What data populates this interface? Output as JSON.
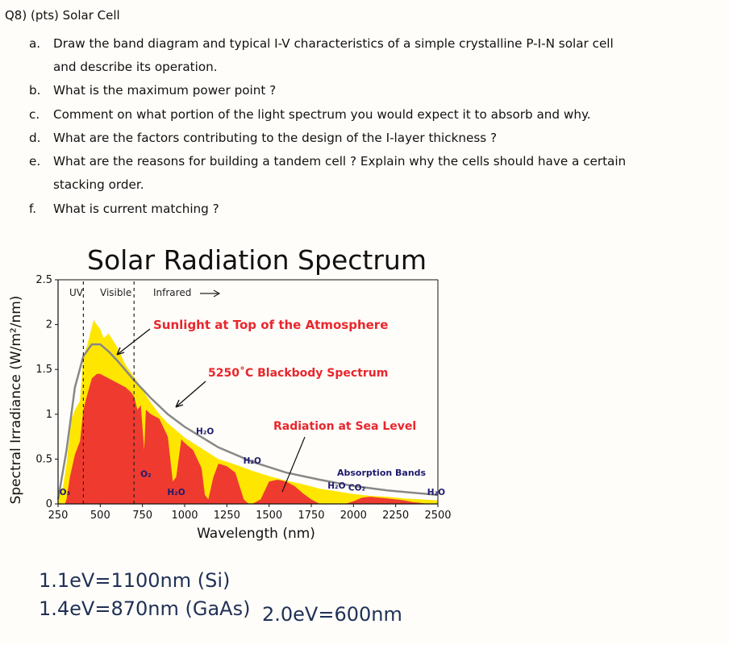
{
  "question": {
    "title": "Q8) (pts) Solar Cell",
    "items": [
      {
        "letter": "a.",
        "lines": [
          "Draw the band diagram and typical I-V characteristics of a simple crystalline P-I-N solar cell",
          "and describe its operation."
        ]
      },
      {
        "letter": "b.",
        "lines": [
          "What is the maximum power point ?"
        ]
      },
      {
        "letter": "c.",
        "lines": [
          "Comment on what portion of the light spectrum you would expect it to absorb and why."
        ]
      },
      {
        "letter": "d.",
        "lines": [
          "What are the factors contributing to the design of the I-layer thickness ?"
        ]
      },
      {
        "letter": "e.",
        "lines": [
          "What are the reasons for building a tandem cell ? Explain why the cells should have a certain",
          "stacking order."
        ]
      },
      {
        "letter": "f.",
        "lines": [
          "What is current matching ?"
        ]
      }
    ]
  },
  "chart_data": {
    "type": "area",
    "title": "Solar Radiation Spectrum",
    "xlabel": "Wavelength (nm)",
    "ylabel": "Spectral Irradiance (W/m²/nm)",
    "xlim": [
      250,
      2500
    ],
    "ylim": [
      0,
      2.5
    ],
    "xticks": [
      "250",
      "500",
      "750",
      "1000",
      "1250",
      "1500",
      "1750",
      "2000",
      "2250",
      "2500"
    ],
    "yticks": [
      "0",
      "0.5",
      "1",
      "1.5",
      "2",
      "2.5"
    ],
    "region_labels": [
      "UV",
      "Visible",
      "Infrared"
    ],
    "region_boundaries": [
      400,
      700
    ],
    "series": [
      {
        "name": "Sunlight at Top of the Atmosphere",
        "color": "#ffe600",
        "x": [
          250,
          280,
          300,
          330,
          350,
          380,
          400,
          420,
          440,
          460,
          480,
          500,
          520,
          550,
          600,
          650,
          700,
          750,
          800,
          850,
          900,
          1000,
          1100,
          1200,
          1300,
          1400,
          1500,
          1600,
          1700,
          1800,
          1900,
          2000,
          2100,
          2200,
          2300,
          2400,
          2500
        ],
        "y": [
          0.05,
          0.2,
          0.45,
          0.95,
          1.05,
          1.15,
          1.65,
          1.75,
          1.9,
          2.05,
          2.0,
          1.95,
          1.85,
          1.9,
          1.75,
          1.55,
          1.42,
          1.27,
          1.13,
          1.0,
          0.9,
          0.74,
          0.62,
          0.5,
          0.44,
          0.37,
          0.31,
          0.26,
          0.22,
          0.17,
          0.14,
          0.11,
          0.09,
          0.08,
          0.06,
          0.05,
          0.04
        ]
      },
      {
        "name": "5250°C Blackbody Spectrum",
        "color": "#888888",
        "x": [
          250,
          300,
          350,
          400,
          450,
          500,
          550,
          600,
          700,
          800,
          900,
          1000,
          1200,
          1400,
          1600,
          1800,
          2000,
          2200,
          2500
        ],
        "y": [
          0.05,
          0.6,
          1.3,
          1.65,
          1.78,
          1.78,
          1.7,
          1.6,
          1.38,
          1.18,
          1.0,
          0.86,
          0.63,
          0.47,
          0.35,
          0.27,
          0.2,
          0.15,
          0.1
        ]
      },
      {
        "name": "Radiation at Sea Level",
        "color": "#ef3a30",
        "x": [
          290,
          300,
          320,
          350,
          380,
          400,
          420,
          450,
          480,
          500,
          550,
          600,
          650,
          680,
          700,
          720,
          740,
          760,
          770,
          800,
          850,
          900,
          930,
          950,
          980,
          1000,
          1050,
          1100,
          1120,
          1140,
          1170,
          1200,
          1250,
          1300,
          1350,
          1380,
          1400,
          1450,
          1500,
          1550,
          1600,
          1650,
          1700,
          1750,
          1800,
          1850,
          1950,
          2000,
          2050,
          2100,
          2150,
          2200,
          2250,
          2300,
          2350,
          2400,
          2450,
          2500
        ],
        "y": [
          0.0,
          0.05,
          0.3,
          0.55,
          0.7,
          1.05,
          1.2,
          1.4,
          1.45,
          1.45,
          1.4,
          1.35,
          1.3,
          1.25,
          1.2,
          1.05,
          1.1,
          0.6,
          1.05,
          1.0,
          0.95,
          0.75,
          0.25,
          0.3,
          0.72,
          0.68,
          0.6,
          0.4,
          0.1,
          0.05,
          0.3,
          0.45,
          0.42,
          0.35,
          0.05,
          0.0,
          0.0,
          0.05,
          0.25,
          0.27,
          0.25,
          0.2,
          0.12,
          0.05,
          0.0,
          0.0,
          0.0,
          0.03,
          0.07,
          0.08,
          0.07,
          0.06,
          0.05,
          0.04,
          0.02,
          0.01,
          0.0,
          0.0
        ]
      }
    ],
    "annotations": {
      "top_label": "Sunlight at Top of the Atmosphere",
      "blackbody_label": "5250˚C Blackbody Spectrum",
      "sea_label": "Radiation at Sea Level",
      "absorption_label": "Absorption Bands",
      "molecules": [
        {
          "text": "O₃",
          "x": 290,
          "y": 0.1
        },
        {
          "text": "O₂",
          "x": 770,
          "y": 0.3
        },
        {
          "text": "H₂O",
          "x": 950,
          "y": 0.1
        },
        {
          "text": "H₂O",
          "x": 1120,
          "y": 0.78
        },
        {
          "text": "H₂O",
          "x": 1400,
          "y": 0.45
        },
        {
          "text": "H₂O",
          "x": 1900,
          "y": 0.17
        },
        {
          "text": "CO₂",
          "x": 2020,
          "y": 0.15
        },
        {
          "text": "H₂O",
          "x": 2490,
          "y": 0.1
        }
      ]
    }
  },
  "notes": {
    "line1": "1.1eV=1100nm (Si)",
    "line2": "1.4eV=870nm (GaAs)",
    "line3": "2.0eV=600nm"
  }
}
